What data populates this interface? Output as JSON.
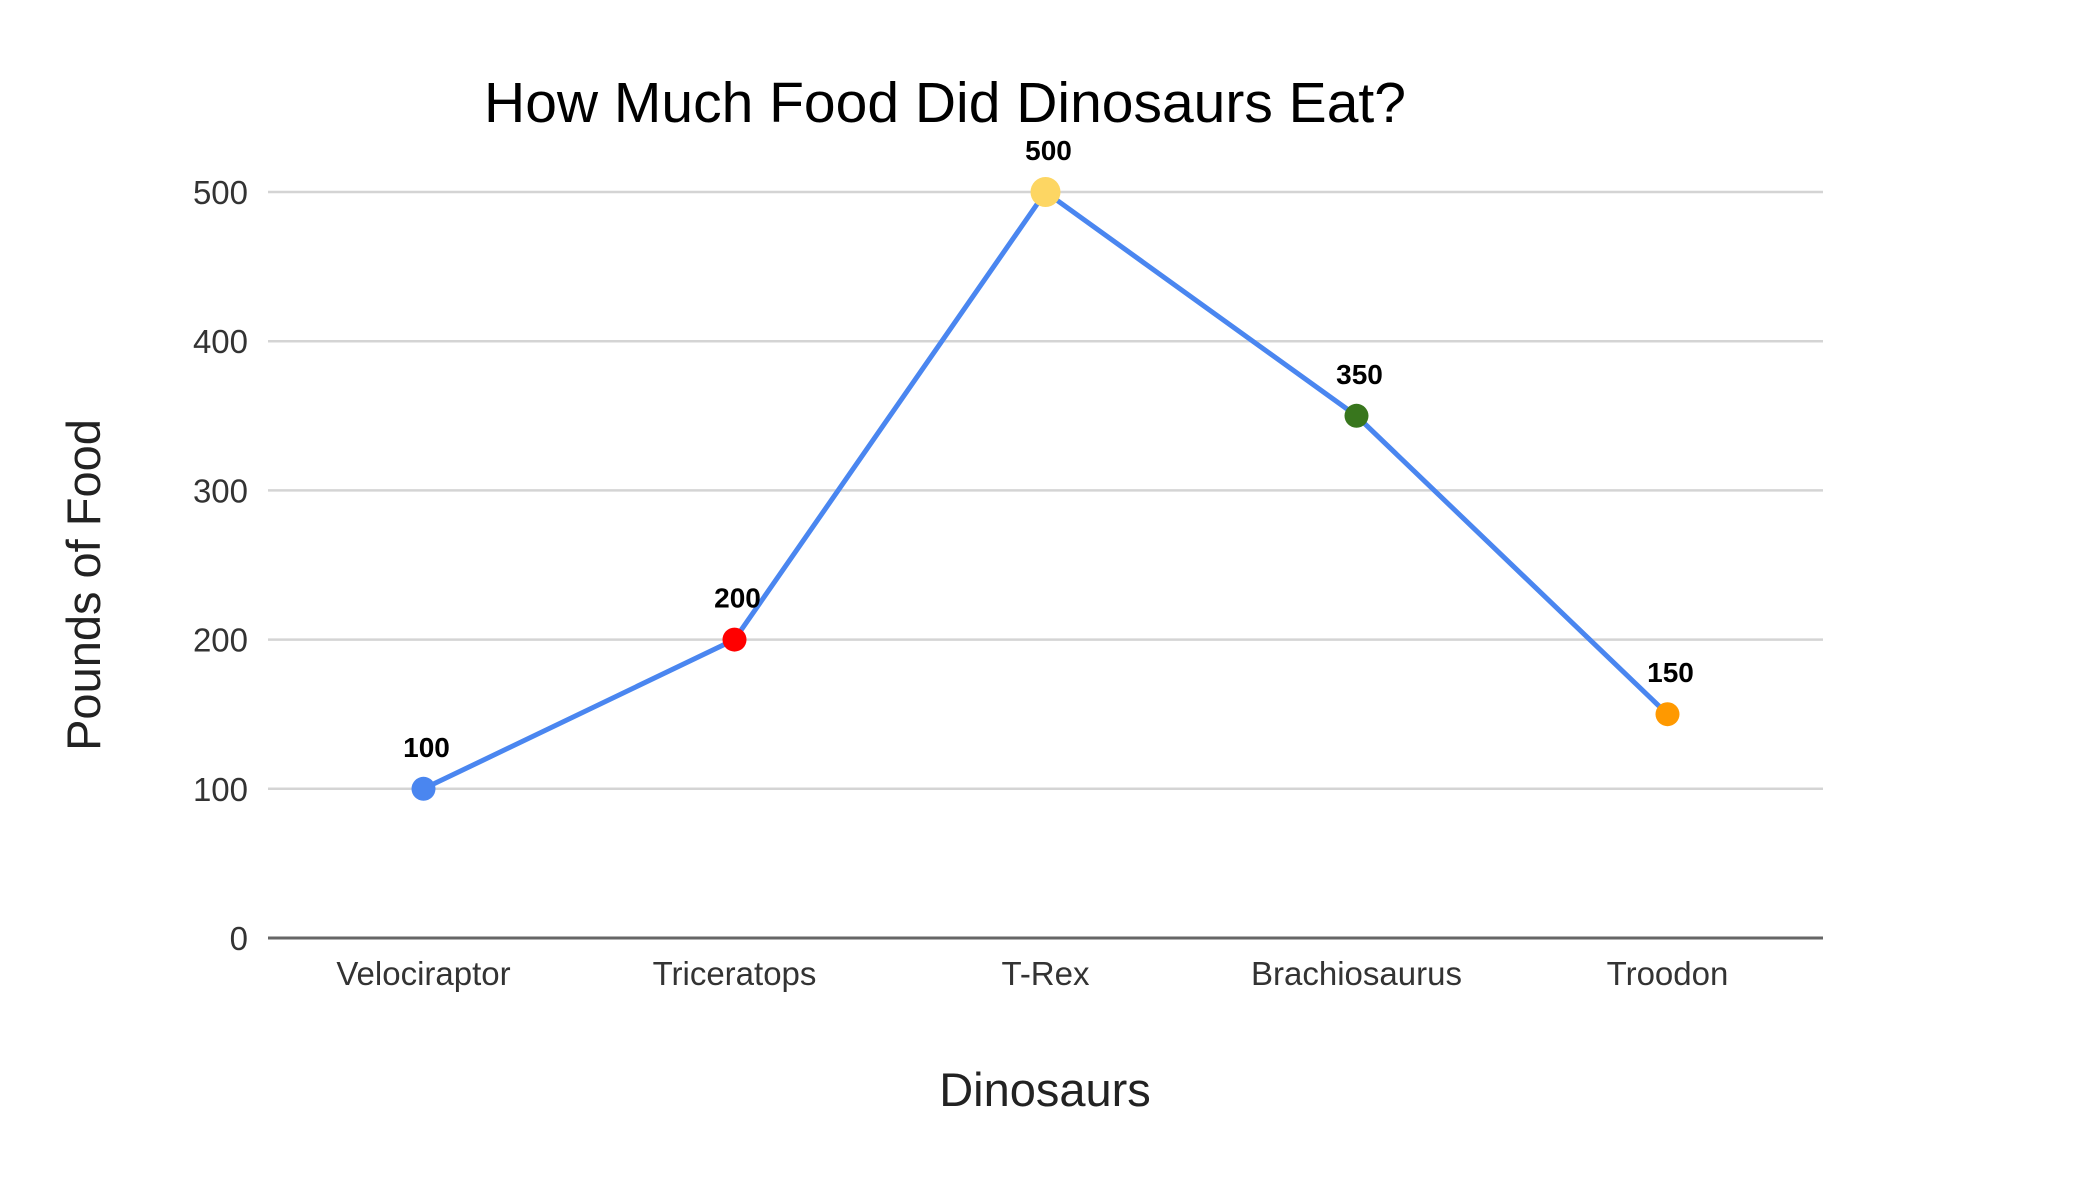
{
  "chart_data": {
    "type": "line",
    "title": "How Much Food Did Dinosaurs Eat?",
    "xlabel": "Dinosaurs",
    "ylabel": "Pounds of Food",
    "categories": [
      "Velociraptor",
      "Triceratops",
      "T-Rex",
      "Brachiosaurus",
      "Troodon"
    ],
    "series": [
      {
        "values": [
          100,
          200,
          500,
          350,
          150
        ],
        "line_color": "#4a86f0",
        "point_colors": [
          "#4a86f0",
          "#ff0000",
          "#fdd663",
          "#38761d",
          "#ff9900"
        ],
        "data_labels": [
          "100",
          "200",
          "500",
          "350",
          "150"
        ]
      }
    ],
    "ylim": [
      0,
      500
    ],
    "yticks": [
      0,
      100,
      200,
      300,
      400,
      500
    ],
    "ytick_labels": [
      "0",
      "100",
      "200",
      "300",
      "400",
      "500"
    ],
    "grid": true,
    "legend": "none"
  }
}
